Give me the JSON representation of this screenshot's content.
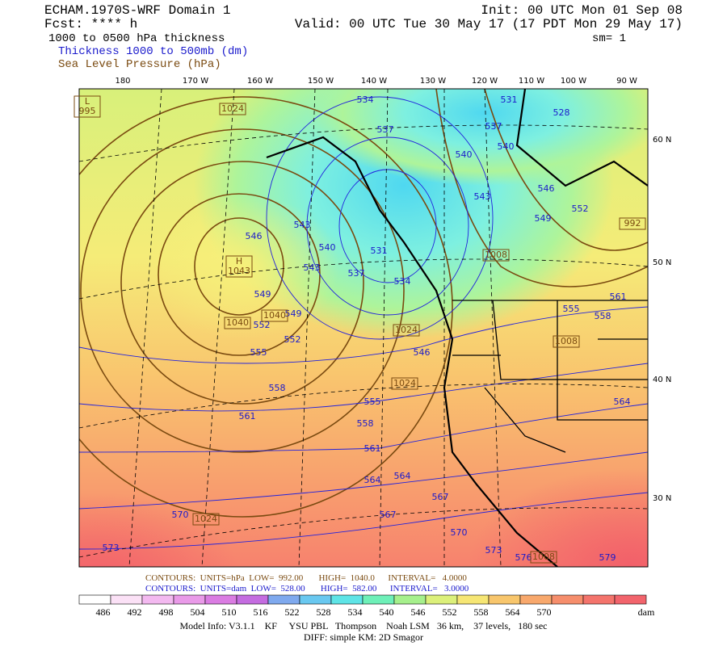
{
  "header": {
    "model": "ECHAM.1970S-WRF Domain 1",
    "fcst": "Fcst: **** h",
    "field": "1000 to 0500 hPa thickness",
    "init": "Init: 00 UTC Mon 01 Sep 08",
    "valid": "Valid: 00 UTC Tue 30 May 17 (17 PDT Mon 29 May 17)",
    "sm": "sm= 1",
    "legend_thickness": "Thickness 1000 to 500mb (dm)",
    "legend_slp": "Sea Level Pressure (hPa)"
  },
  "lon_labels": [
    "180",
    "170 W",
    "160 W",
    "150 W",
    "140 W",
    "130 W",
    "120 W",
    "110 W",
    "100 W",
    "90 W"
  ],
  "lat_labels": [
    "60 N",
    "50 N",
    "40 N",
    "30 N"
  ],
  "thickness_labels": [
    "534",
    "531",
    "528",
    "537",
    "537",
    "540",
    "540",
    "543",
    "546",
    "549",
    "552",
    "543",
    "546",
    "540",
    "531",
    "537",
    "543",
    "534",
    "549",
    "549",
    "552",
    "552",
    "555",
    "558",
    "561",
    "555",
    "546",
    "558",
    "555",
    "561",
    "558",
    "561",
    "564",
    "564",
    "567",
    "567",
    "570",
    "570",
    "573",
    "573",
    "576",
    "579",
    "564"
  ],
  "pressure_labels": [
    "1024",
    "H\n1043",
    "1040",
    "1040",
    "1024",
    "1024",
    "1008",
    "1008",
    "992",
    "1024",
    "1008",
    "L\n995"
  ],
  "contour_info": {
    "slp": "CONTOURS:  UNITS=hPa  LOW=  992.00       HIGH=  1040.0      INTERVAL=   4.0000",
    "thickness": "CONTOURS:  UNITS=dam  LOW=  528.00       HIGH=  582.00      INTERVAL=   3.0000"
  },
  "colorbar": {
    "levels": [
      "486",
      "492",
      "498",
      "504",
      "510",
      "516",
      "522",
      "528",
      "534",
      "540",
      "546",
      "552",
      "558",
      "564",
      "570"
    ],
    "unit": "dam"
  },
  "footer": {
    "model_info": "Model Info: V3.1.1    KF     YSU PBL   Thompson    Noah LSM   36 km,    37 levels,   180 sec",
    "diff": "DIFF: simple KM: 2D Smagor"
  }
}
